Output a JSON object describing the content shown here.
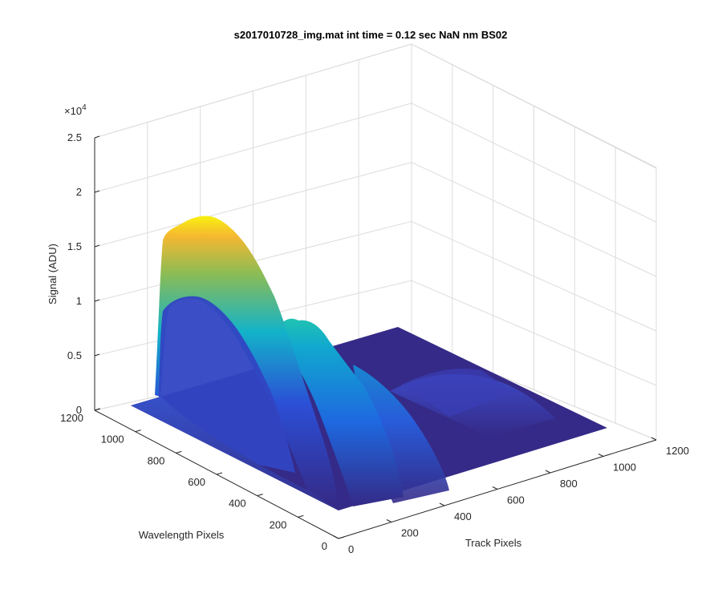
{
  "chart_data": {
    "type": "surface",
    "title": "s2017010728_img.mat int time = 0.12 sec  NaN nm BS02",
    "xlabel": "Track Pixels",
    "ylabel": "Wavelength Pixels",
    "zlabel": "Signal (ADU)",
    "z_exponent_label": "×10",
    "z_exponent": "4",
    "xlim": [
      0,
      1200
    ],
    "ylim": [
      0,
      1200
    ],
    "zlim": [
      0,
      25000
    ],
    "x_ticks": [
      "0",
      "200",
      "400",
      "600",
      "800",
      "1000",
      "1200"
    ],
    "y_ticks": [
      "0",
      "200",
      "400",
      "600",
      "800",
      "1000",
      "1200"
    ],
    "z_ticks": [
      "0",
      "0.5",
      "1",
      "1.5",
      "2",
      "2.5"
    ],
    "grid": true,
    "colormap": "parula",
    "colors": {
      "low": "#352a87",
      "mid_blue": "#0f5cdd",
      "cyan": "#12bdb9",
      "green": "#6dbb5a",
      "orange": "#f9b42a",
      "yellow": "#f9fb0e"
    },
    "peaks": [
      {
        "track_center": 120,
        "wavelength_span": [
          0,
          1100
        ],
        "max_signal": 18500
      },
      {
        "track_center": 300,
        "wavelength_span": [
          0,
          1000
        ],
        "max_signal": 12500
      },
      {
        "track_center": 450,
        "wavelength_span": [
          0,
          900
        ],
        "max_signal": 6000
      },
      {
        "track_center": 650,
        "wavelength_span": [
          50,
          800
        ],
        "max_signal": 2500
      },
      {
        "track_center": 850,
        "wavelength_span": [
          100,
          700
        ],
        "max_signal": 1500
      }
    ]
  }
}
